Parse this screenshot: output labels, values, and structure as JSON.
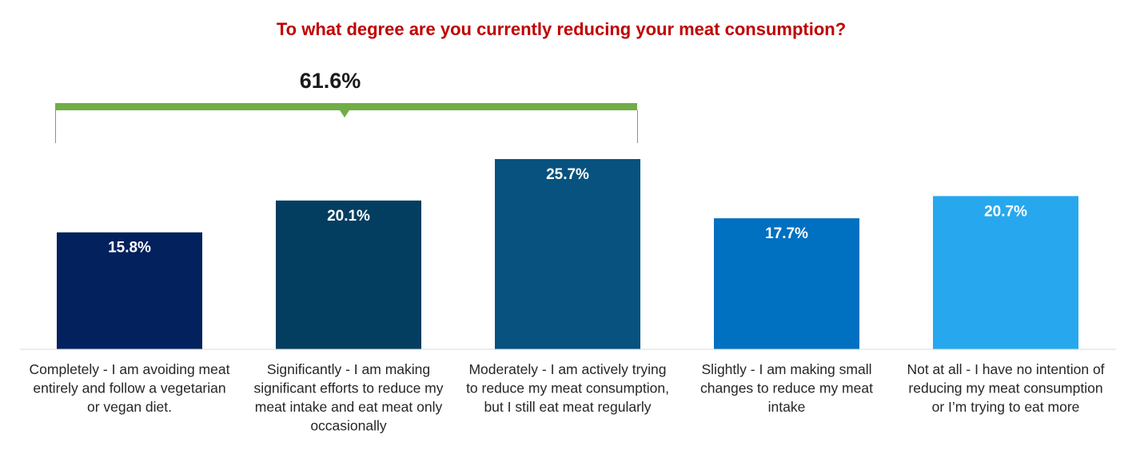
{
  "chart_data": {
    "type": "bar",
    "title": "To what degree are you currently reducing your meat consumption?",
    "title_color": "#C00000",
    "categories": [
      "Completely - I am avoiding meat entirely and follow a vegetarian or vegan diet.",
      "Significantly - I am making significant efforts to reduce my meat intake and eat meat only occasionally",
      "Moderately - I am actively trying to reduce my meat consumption, but I still eat meat regularly",
      "Slightly - I am making small changes to reduce my meat intake",
      "Not at all - I have no intention of reducing my meat consumption or I’m trying to eat more"
    ],
    "category_label_lines": [
      [
        "Completely - I am avoiding meat",
        "entirely and follow a vegetarian",
        "or vegan diet."
      ],
      [
        "Significantly - I am making",
        "significant efforts to reduce my",
        "meat intake and eat meat only",
        "occasionally"
      ],
      [
        "Moderately - I am actively trying",
        "to reduce my meat consumption,",
        "but I still eat meat regularly"
      ],
      [
        "Slightly - I am making small",
        "changes to reduce my meat",
        "intake"
      ],
      [
        "Not at all - I have no intention of",
        "reducing my meat consumption",
        "or I’m trying to eat more"
      ]
    ],
    "values": [
      15.8,
      20.1,
      25.7,
      17.7,
      20.7
    ],
    "data_labels": [
      "15.8%",
      "20.1%",
      "25.7%",
      "17.7%",
      "20.7%"
    ],
    "bar_colors": [
      "#03215C",
      "#033D60",
      "#07527E",
      "#0070C0",
      "#27A8EE"
    ],
    "bracket": {
      "label": "61.6%",
      "spans_categories": [
        0,
        2
      ],
      "color": "#70AD47"
    },
    "grid": false,
    "legend": "none"
  }
}
